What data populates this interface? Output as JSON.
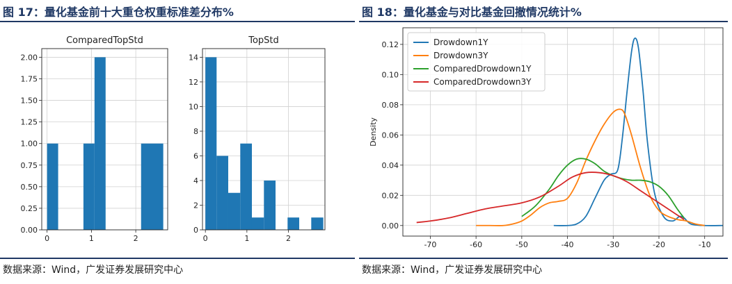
{
  "left": {
    "fig_title": "图 17：量化基金前十大重仓权重标准差分布%",
    "source": "数据来源：Wind，广发证券发展研究中心"
  },
  "right": {
    "fig_title": "图 18：量化基金与对比基金回撤情况统计%",
    "source": "数据来源：Wind，广发证券发展研究中心"
  },
  "colors": {
    "bar": "#1f77b4",
    "Drowdown1Y": "#1f77b4",
    "Drowdown3Y": "#ff7f0e",
    "ComparedDrowdown1Y": "#2ca02c",
    "ComparedDrowdown3Y": "#d62728"
  },
  "chart_data": [
    {
      "type": "bar",
      "title": "ComparedTopStd",
      "xlim": [
        -0.12,
        2.72
      ],
      "ylim": [
        0,
        2.1
      ],
      "x_ticks": [
        0,
        1,
        2
      ],
      "y_ticks": [
        "0.00",
        "0.25",
        "0.50",
        "0.75",
        "1.00",
        "1.25",
        "1.50",
        "1.75",
        "2.00"
      ],
      "bins": [
        {
          "x0": 0.0,
          "x1": 0.25,
          "value": 1
        },
        {
          "x0": 0.82,
          "x1": 1.07,
          "value": 1
        },
        {
          "x0": 1.07,
          "x1": 1.32,
          "value": 2
        },
        {
          "x0": 2.12,
          "x1": 2.62,
          "value": 1
        }
      ],
      "grid": true
    },
    {
      "type": "bar",
      "title": "TopStd",
      "xlim": [
        -0.07,
        2.88
      ],
      "ylim": [
        0,
        14.7
      ],
      "x_ticks": [
        0,
        1,
        2
      ],
      "y_ticks": [
        "0",
        "2",
        "4",
        "6",
        "8",
        "10",
        "12",
        "14"
      ],
      "bins": [
        {
          "x0": 0.0,
          "x1": 0.27,
          "value": 14
        },
        {
          "x0": 0.27,
          "x1": 0.55,
          "value": 6
        },
        {
          "x0": 0.55,
          "x1": 0.84,
          "value": 3
        },
        {
          "x0": 0.84,
          "x1": 1.12,
          "value": 7
        },
        {
          "x0": 1.12,
          "x1": 1.41,
          "value": 1
        },
        {
          "x0": 1.41,
          "x1": 1.69,
          "value": 4
        },
        {
          "x0": 1.98,
          "x1": 2.26,
          "value": 1
        },
        {
          "x0": 2.55,
          "x1": 2.84,
          "value": 1
        }
      ],
      "grid": true
    },
    {
      "type": "line",
      "xlim": [
        -76,
        -6
      ],
      "ylim": [
        -0.007,
        0.131
      ],
      "ylabel": "Density",
      "x_ticks": [
        -70,
        -60,
        -50,
        -40,
        -30,
        -20,
        -10
      ],
      "y_ticks": [
        "0.00",
        "0.02",
        "0.04",
        "0.06",
        "0.08",
        "0.10",
        "0.12"
      ],
      "legend": "top-left",
      "grid": true,
      "series": [
        {
          "name": "Drowdown1Y",
          "x": [
            -43,
            -40,
            -38,
            -36,
            -34,
            -32,
            -30.5,
            -29,
            -28,
            -27,
            -26,
            -25.3,
            -24.5,
            -23.5,
            -22.5,
            -21,
            -19,
            -17,
            -15.5,
            -14.5,
            -13,
            -10,
            -6
          ],
          "y": [
            0.0,
            0.0,
            0.001,
            0.006,
            0.018,
            0.03,
            0.034,
            0.037,
            0.058,
            0.088,
            0.115,
            0.124,
            0.118,
            0.09,
            0.055,
            0.022,
            0.006,
            0.003,
            0.006,
            0.005,
            0.001,
            0.0,
            0.0
          ]
        },
        {
          "name": "Drowdown3Y",
          "x": [
            -60,
            -57,
            -54,
            -52,
            -50,
            -48,
            -46,
            -44,
            -42,
            -40,
            -38,
            -36,
            -34,
            -32,
            -30,
            -28.5,
            -27.5,
            -26,
            -24,
            -22,
            -20,
            -18,
            -16,
            -14,
            -12,
            -10
          ],
          "y": [
            0.0,
            0.0,
            0.0,
            0.001,
            0.003,
            0.007,
            0.012,
            0.015,
            0.016,
            0.018,
            0.028,
            0.043,
            0.056,
            0.067,
            0.075,
            0.077,
            0.074,
            0.06,
            0.038,
            0.02,
            0.01,
            0.006,
            0.004,
            0.003,
            0.001,
            0.0
          ]
        },
        {
          "name": "ComparedDrowdown1Y",
          "x": [
            -50,
            -47,
            -44,
            -42,
            -40,
            -38,
            -36,
            -34,
            -32,
            -30,
            -28,
            -26,
            -24,
            -22,
            -20,
            -18,
            -16,
            -14.5
          ],
          "y": [
            0.006,
            0.013,
            0.024,
            0.033,
            0.04,
            0.044,
            0.044,
            0.041,
            0.036,
            0.033,
            0.031,
            0.03,
            0.03,
            0.029,
            0.026,
            0.02,
            0.011,
            0.005
          ]
        },
        {
          "name": "ComparedDrowdown3Y",
          "x": [
            -73,
            -70,
            -66,
            -62,
            -58,
            -54,
            -50,
            -46,
            -42,
            -39,
            -36,
            -33,
            -30,
            -27,
            -24,
            -22,
            -20,
            -18,
            -16,
            -14.5
          ],
          "y": [
            0.002,
            0.003,
            0.005,
            0.008,
            0.011,
            0.013,
            0.015,
            0.019,
            0.026,
            0.032,
            0.035,
            0.035,
            0.033,
            0.029,
            0.023,
            0.019,
            0.015,
            0.011,
            0.007,
            0.004
          ]
        }
      ]
    }
  ]
}
